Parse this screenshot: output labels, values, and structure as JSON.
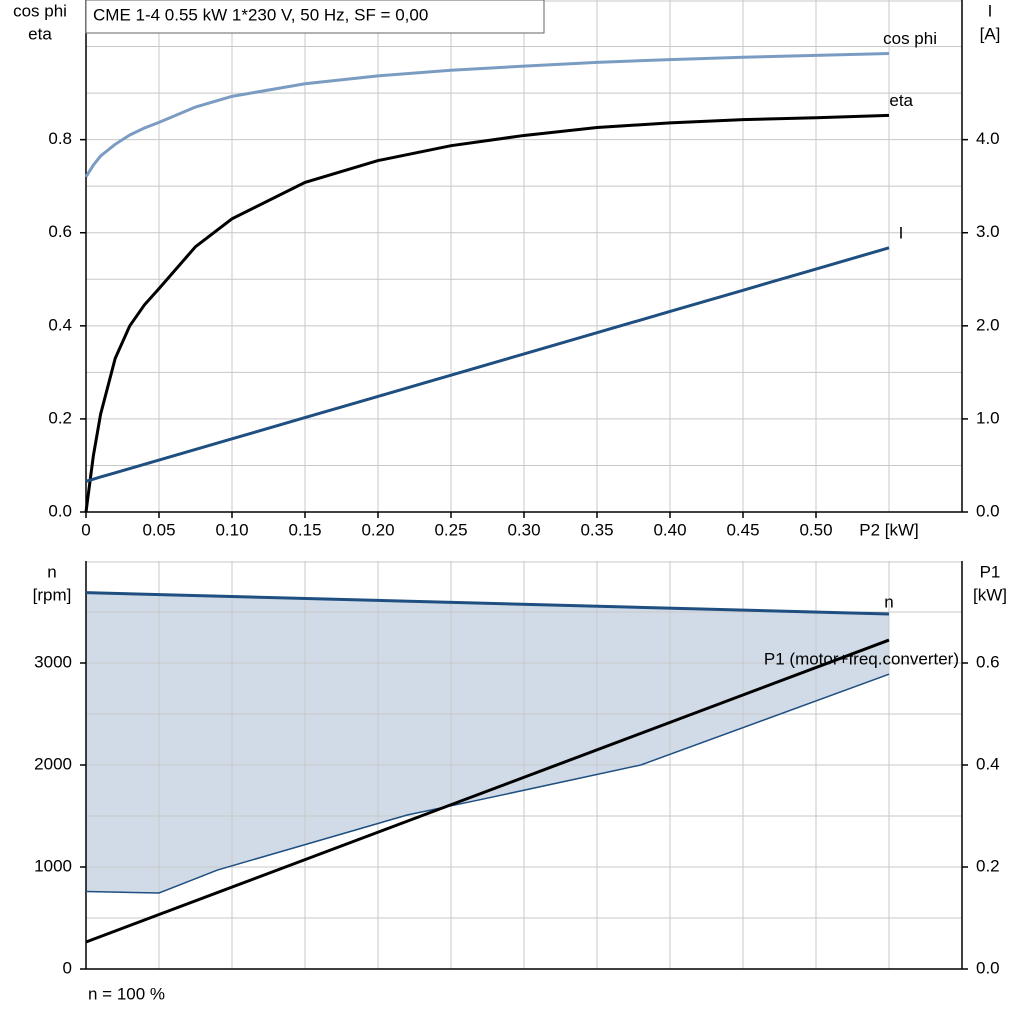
{
  "chart_data": [
    {
      "type": "line",
      "title": "CME 1-4   0.55 kW   1*230 V, 50 Hz, SF = 0,00",
      "ylabel": [
        "cos phi",
        "eta"
      ],
      "y2label": [
        "I",
        "[A]"
      ],
      "xlabel": "P2 [kW]",
      "xlim": [
        0,
        0.6
      ],
      "ylim": [
        0,
        1.1
      ],
      "y2lim": [
        0,
        5.5
      ],
      "xticks": [
        0,
        0.05,
        {
          "value": 0.1,
          "label": "0.10"
        },
        0.15,
        {
          "value": 0.2,
          "label": "0.20"
        },
        0.25,
        {
          "value": 0.3,
          "label": "0.30"
        },
        0.35,
        {
          "value": 0.4,
          "label": "0.40"
        },
        0.45,
        {
          "value": 0.5,
          "label": "0.50"
        }
      ],
      "yticks": [
        {
          "value": 0,
          "label": "0.0"
        },
        0.2,
        0.4,
        0.6,
        0.8
      ],
      "y2ticks": [
        {
          "value": 0,
          "label": "0.0"
        },
        {
          "value": 1,
          "label": "1.0"
        },
        {
          "value": 2,
          "label": "2.0"
        },
        {
          "value": 3,
          "label": "3.0"
        },
        {
          "value": 4,
          "label": "4.0"
        }
      ],
      "xgrid": [
        0.05,
        0.1,
        0.15,
        0.2,
        0.25,
        0.3,
        0.35,
        0.4,
        0.45,
        0.5,
        0.55
      ],
      "ygrid": [
        0.1,
        0.2,
        0.3,
        0.4,
        0.5,
        0.6,
        0.7,
        0.8,
        0.9,
        1.0
      ],
      "x": [
        0,
        0.005,
        0.01,
        0.02,
        0.03,
        0.04,
        0.05,
        0.075,
        0.1,
        0.15,
        0.2,
        0.25,
        0.3,
        0.35,
        0.4,
        0.45,
        0.5,
        0.55
      ],
      "series": [
        {
          "name": "cos phi",
          "color": "#7b9cc2",
          "values": [
            0.72,
            0.745,
            0.765,
            0.79,
            0.81,
            0.825,
            0.837,
            0.87,
            0.893,
            0.92,
            0.937,
            0.949,
            0.958,
            0.966,
            0.972,
            0.977,
            0.981,
            0.985
          ]
        },
        {
          "name": "eta",
          "color": "#000000",
          "values": [
            0,
            0.12,
            0.21,
            0.33,
            0.4,
            0.445,
            0.48,
            0.57,
            0.63,
            0.708,
            0.755,
            0.787,
            0.809,
            0.826,
            0.836,
            0.843,
            0.847,
            0.852
          ]
        },
        {
          "name": "I",
          "color": "#1f4e80",
          "axis": "y2",
          "values": [
            0.33,
            0.353,
            0.376,
            0.421,
            0.467,
            0.512,
            0.558,
            0.672,
            0.786,
            1.014,
            1.242,
            1.47,
            1.698,
            1.926,
            2.154,
            2.382,
            2.61,
            2.838
          ]
        }
      ]
    },
    {
      "type": "line",
      "ylabel": [
        "n",
        "[rpm]"
      ],
      "y2label": [
        "P1",
        "[kW]"
      ],
      "footnote": "n = 100 %",
      "xlim": [
        0,
        0.6
      ],
      "ylim": [
        0,
        4000
      ],
      "y2lim": [
        0,
        0.8
      ],
      "yticks": [
        0,
        1000,
        2000,
        3000
      ],
      "y2ticks": [
        {
          "value": 0,
          "label": "0.0"
        },
        0.2,
        0.4,
        0.6
      ],
      "xgrid": [
        0.05,
        0.1,
        0.15,
        0.2,
        0.25,
        0.3,
        0.35,
        0.4,
        0.45,
        0.5,
        0.55
      ],
      "ygrid": [
        500,
        1000,
        1500,
        2000,
        2500,
        3000,
        3500
      ],
      "area_color": "#d0dbe7",
      "series": [
        {
          "name": "n",
          "color": "#1f4e80",
          "x": [
            0,
            0.55
          ],
          "values": [
            3690,
            3480
          ]
        },
        {
          "color": "#1f4e80",
          "x": [
            0,
            0.05,
            0.09,
            0.22,
            0.27,
            0.38,
            0.55
          ],
          "values": [
            760,
            745,
            970,
            1510,
            1660,
            2000,
            2890
          ]
        },
        {
          "name": "P1 (motor+freq.converter)",
          "color": "#000000",
          "axis": "y2",
          "x": [
            0,
            0.55
          ],
          "values": [
            0.053,
            0.645
          ]
        }
      ]
    }
  ]
}
